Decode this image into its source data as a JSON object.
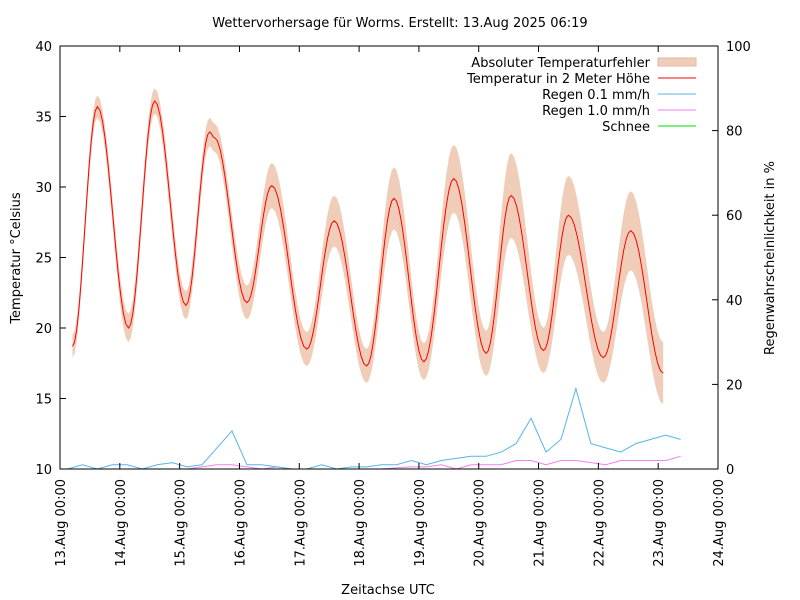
{
  "chart_data": {
    "type": "line",
    "title": "Wettervorhersage für Worms. Erstellt: 13.Aug 2025 06:19",
    "xlabel": "Zeitachse UTC",
    "ylabel": "Temperatur °Celsius",
    "y2label": "Regenwahrscheinlichkeit in %",
    "xlim_hours": [
      0,
      264
    ],
    "ylim": [
      10,
      40
    ],
    "y2lim": [
      0,
      100
    ],
    "x_ticks": [
      "13.Aug 00:00",
      "14.Aug 00:00",
      "15.Aug 00:00",
      "16.Aug 00:00",
      "17.Aug 00:00",
      "18.Aug 00:00",
      "19.Aug 00:00",
      "20.Aug 00:00",
      "21.Aug 00:00",
      "22.Aug 00:00",
      "23.Aug 00:00",
      "24.Aug 00:00"
    ],
    "y_ticks": [
      "10",
      "15",
      "20",
      "25",
      "30",
      "35",
      "40"
    ],
    "y2_ticks": [
      "0",
      "20",
      "40",
      "60",
      "80",
      "100"
    ],
    "legend": [
      "Absoluter Temperaturfehler",
      "Temperatur in 2 Meter Höhe",
      "Regen 0.1 mm/h",
      "Regen 1.0 mm/h",
      "Schnee"
    ],
    "legend_position": "top-right",
    "colors": {
      "band": "#f0cdb9",
      "temp": "#ff0000",
      "rain01": "#56b4e9",
      "rain10": "#ee82ee",
      "snow": "#00dd00"
    },
    "temperature": {
      "hours": [
        5,
        15,
        27.5,
        38,
        50.5,
        60,
        62,
        75,
        85,
        99,
        110,
        123,
        134,
        146,
        158,
        171,
        181,
        194,
        204,
        218,
        229,
        242
      ],
      "values": [
        18.7,
        35.7,
        20.0,
        36.1,
        21.6,
        33.9,
        33.5,
        21.8,
        30.1,
        18.5,
        27.6,
        17.3,
        29.2,
        17.6,
        30.6,
        18.2,
        29.4,
        18.4,
        28.0,
        17.9,
        26.9,
        16.8
      ],
      "abs_error": [
        0.8,
        0.8,
        1.0,
        0.9,
        1.0,
        1.0,
        1.0,
        1.2,
        1.6,
        1.2,
        1.8,
        1.2,
        2.2,
        1.3,
        2.4,
        1.6,
        3.0,
        1.6,
        2.8,
        1.8,
        2.8,
        2.2
      ]
    },
    "rain_hours_step": 6,
    "rain_0_1": [
      0,
      1,
      0,
      1,
      1,
      0,
      1,
      1.5,
      0.5,
      1,
      5,
      9,
      1,
      1,
      0.5,
      0,
      0,
      1,
      0,
      0.5,
      0.5,
      1,
      1,
      2,
      1,
      2,
      2.5,
      3,
      3,
      4,
      6,
      12,
      4,
      7,
      19,
      6,
      5,
      4,
      6,
      7,
      8,
      7
    ],
    "rain_1_0": [
      0,
      0,
      0,
      0,
      0,
      0,
      0,
      0,
      0,
      0.5,
      1,
      1,
      0.5,
      0,
      0.5,
      0,
      0,
      0,
      0,
      0,
      0,
      0,
      0.3,
      0.5,
      0.5,
      1,
      0,
      1,
      1,
      1,
      2,
      2,
      1,
      2,
      2,
      1.5,
      1,
      2,
      2,
      2,
      2,
      3
    ],
    "snow": []
  }
}
